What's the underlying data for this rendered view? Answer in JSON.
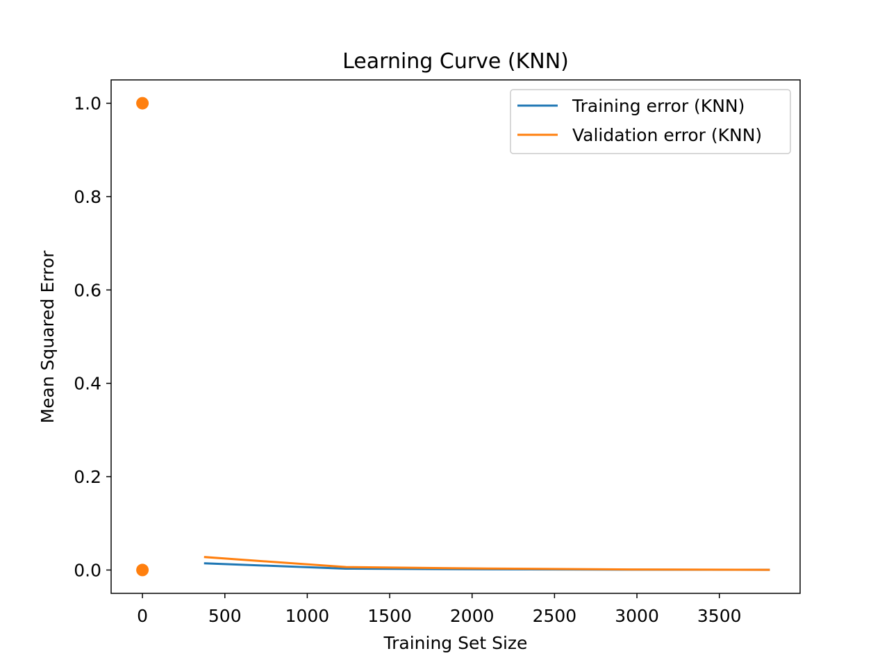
{
  "chart_data": {
    "type": "line",
    "title": "Learning Curve (KNN)",
    "xlabel": "Training Set Size",
    "ylabel": "Mean Squared Error",
    "xlim": [
      -190,
      3990
    ],
    "ylim": [
      -0.05,
      1.05
    ],
    "x_ticks": [
      0,
      500,
      1000,
      1500,
      2000,
      2500,
      3000,
      3500
    ],
    "x_tick_labels": [
      "0",
      "500",
      "1000",
      "1500",
      "2000",
      "2500",
      "3000",
      "3500"
    ],
    "y_ticks": [
      0.0,
      0.2,
      0.4,
      0.6,
      0.8,
      1.0
    ],
    "y_tick_labels": [
      "0.0",
      "0.2",
      "0.4",
      "0.6",
      "0.8",
      "1.0"
    ],
    "grid": false,
    "legend_position": "top-right",
    "series": [
      {
        "name": "Training error (KNN)",
        "color": "#1f77b4",
        "x": [
          380,
          1235,
          2090,
          2945,
          3800
        ],
        "y": [
          0.0143,
          0.0029,
          0.0015,
          0.0008,
          0.0005
        ]
      },
      {
        "name": "Validation error (KNN)",
        "color": "#ff7f0e",
        "x": [
          380,
          1235,
          2090,
          2945,
          3800
        ],
        "y": [
          0.0277,
          0.0063,
          0.0032,
          0.0012,
          0.0004
        ]
      }
    ],
    "scatter_points": {
      "color": "#ff7f0e",
      "x": [
        0,
        0
      ],
      "y": [
        1.0,
        0.0
      ]
    }
  }
}
